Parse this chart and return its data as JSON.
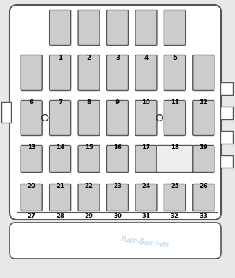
{
  "title": "Fuse-Box.info",
  "bg_color": "#e8e8e8",
  "panel_bg": "#ffffff",
  "fuse_fill": "#cccccc",
  "fuse_edge": "#555555",
  "fuse25_fill": "#eeeeee",
  "label_color": "#000000",
  "watermark_color": "#88bbdd",
  "fig_w": 3.4,
  "fig_h": 4.02,
  "dpi": 100,
  "rows": [
    {
      "row_idx": 0,
      "fuses": [
        {
          "num": 1,
          "col": 1,
          "wide": false,
          "circle_left": false
        },
        {
          "num": 2,
          "col": 2,
          "wide": false,
          "circle_left": false
        },
        {
          "num": 3,
          "col": 3,
          "wide": false,
          "circle_left": false
        },
        {
          "num": 4,
          "col": 4,
          "wide": false,
          "circle_left": false
        },
        {
          "num": 5,
          "col": 5,
          "wide": false,
          "circle_left": false
        }
      ]
    },
    {
      "row_idx": 1,
      "fuses": [
        {
          "num": 6,
          "col": 0,
          "wide": false,
          "circle_left": false
        },
        {
          "num": 7,
          "col": 1,
          "wide": false,
          "circle_left": false
        },
        {
          "num": 8,
          "col": 2,
          "wide": false,
          "circle_left": false
        },
        {
          "num": 9,
          "col": 3,
          "wide": false,
          "circle_left": false
        },
        {
          "num": 10,
          "col": 4,
          "wide": false,
          "circle_left": false
        },
        {
          "num": 11,
          "col": 5,
          "wide": false,
          "circle_left": false
        },
        {
          "num": 12,
          "col": 6,
          "wide": false,
          "circle_left": false
        }
      ]
    },
    {
      "row_idx": 2,
      "fuses": [
        {
          "num": 13,
          "col": 0,
          "wide": false,
          "circle_left": false
        },
        {
          "num": 14,
          "col": 1,
          "wide": false,
          "circle_left": true
        },
        {
          "num": 15,
          "col": 2,
          "wide": false,
          "circle_left": false
        },
        {
          "num": 16,
          "col": 3,
          "wide": false,
          "circle_left": false
        },
        {
          "num": 17,
          "col": 4,
          "wide": false,
          "circle_left": false
        },
        {
          "num": 18,
          "col": 5,
          "wide": false,
          "circle_left": true
        },
        {
          "num": 19,
          "col": 6,
          "wide": false,
          "circle_left": false
        }
      ]
    },
    {
      "row_idx": 3,
      "fuses": [
        {
          "num": 20,
          "col": 0,
          "wide": false,
          "circle_left": false
        },
        {
          "num": 21,
          "col": 1,
          "wide": false,
          "circle_left": false
        },
        {
          "num": 22,
          "col": 2,
          "wide": false,
          "circle_left": false
        },
        {
          "num": 23,
          "col": 3,
          "wide": false,
          "circle_left": false
        },
        {
          "num": 24,
          "col": 4,
          "wide": false,
          "circle_left": false
        },
        {
          "num": 25,
          "col": 5,
          "wide": true,
          "circle_left": false
        },
        {
          "num": 26,
          "col": 6,
          "wide": false,
          "circle_left": false
        }
      ]
    },
    {
      "row_idx": 4,
      "fuses": [
        {
          "num": 27,
          "col": 0,
          "wide": false,
          "circle_left": false
        },
        {
          "num": 28,
          "col": 1,
          "wide": false,
          "circle_left": false
        },
        {
          "num": 29,
          "col": 2,
          "wide": false,
          "circle_left": false
        },
        {
          "num": 30,
          "col": 3,
          "wide": false,
          "circle_left": false
        },
        {
          "num": 31,
          "col": 4,
          "wide": false,
          "circle_left": false
        },
        {
          "num": 32,
          "col": 5,
          "wide": false,
          "circle_left": false
        },
        {
          "num": 33,
          "col": 6,
          "wide": false,
          "circle_left": false
        }
      ]
    }
  ]
}
